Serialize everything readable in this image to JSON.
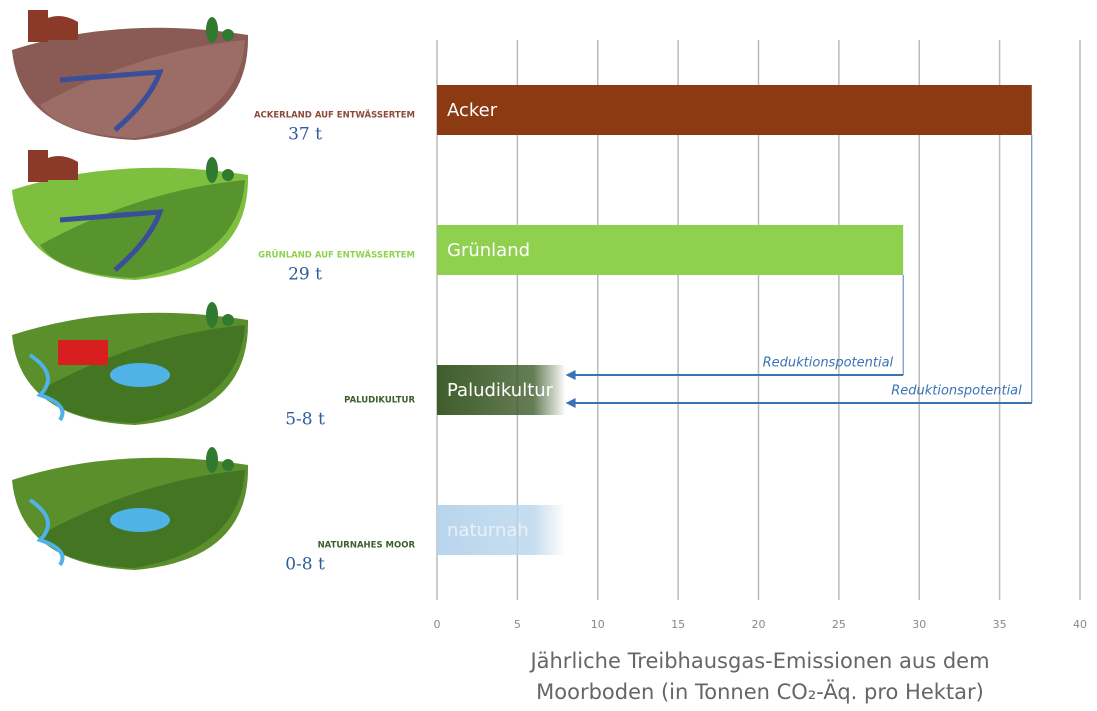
{
  "chart_data": {
    "type": "bar",
    "orientation": "horizontal",
    "categories": [
      "Acker",
      "Grünland",
      "Paludikultur",
      "naturnah"
    ],
    "values": [
      37,
      29,
      8,
      8
    ],
    "colors": [
      "#8b3a12",
      "#8fd14f",
      "#3f5d2b",
      "#b9d5ec"
    ],
    "fade": [
      false,
      false,
      true,
      true
    ],
    "side_labels": [
      "ACKERLAND AUF ENTWÄSSERTEM",
      "GRÜNLAND AUF ENTWÄSSERTEM",
      "PALUDIKULTUR",
      "NATURNAHES MOOR"
    ],
    "side_label_colors": [
      "#8b4a3a",
      "#8fd14f",
      "#3f5d2b",
      "#3f5d2b"
    ],
    "side_amounts": [
      "37 t",
      "29 t",
      "5-8 t",
      "0-8 t"
    ],
    "annotations": [
      "Reduktionspotential",
      "Reduktionspotential"
    ],
    "xlim": [
      0,
      40
    ],
    "xticks": [
      0,
      5,
      10,
      15,
      20,
      25,
      30,
      35,
      40
    ],
    "grid": true,
    "xlabel": [
      "Jährliche Treibhausgas-Emissionen aus dem",
      "Moorboden (in Tonnen CO₂-Äq. pro Hektar)"
    ]
  }
}
